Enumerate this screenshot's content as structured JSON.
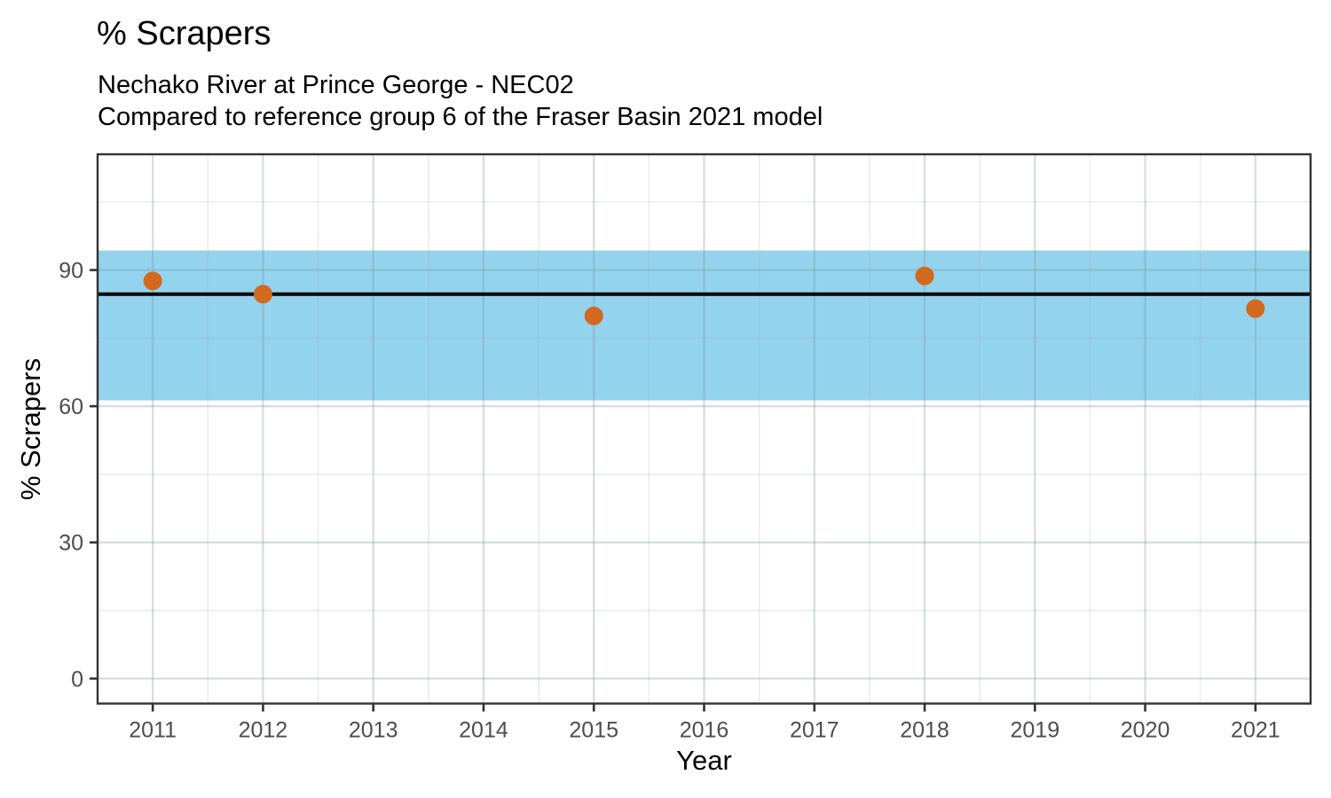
{
  "chart_data": {
    "type": "scatter",
    "title": "% Scrapers",
    "subtitle_line1": "Nechako River at Prince George - NEC02",
    "subtitle_line2": "Compared to reference group 6 of the Fraser Basin 2021 model",
    "xlabel": "Year",
    "ylabel": "% Scrapers",
    "x_ticks": [
      2011,
      2012,
      2013,
      2014,
      2015,
      2016,
      2017,
      2018,
      2019,
      2020,
      2021
    ],
    "y_ticks": [
      0,
      30,
      60,
      90
    ],
    "xlim": [
      2010.5,
      2021.5
    ],
    "ylim": [
      -5.5,
      115.5
    ],
    "points": [
      {
        "year": 2011,
        "value": 87.6
      },
      {
        "year": 2012,
        "value": 84.7
      },
      {
        "year": 2015,
        "value": 79.9
      },
      {
        "year": 2018,
        "value": 88.7
      },
      {
        "year": 2021,
        "value": 81.5
      }
    ],
    "reference_line": 84.7,
    "reference_band": {
      "min": 61.3,
      "max": 94.3
    },
    "legend": "none",
    "grid": true,
    "colors": {
      "point": "#D2691E",
      "band": "#87CEEB",
      "reference_line": "#000000",
      "grid_major": "#E6E8EA",
      "grid_minor": "#F2F3F4",
      "axis_text": "#4D4D4D",
      "panel_border": "#333333"
    }
  }
}
